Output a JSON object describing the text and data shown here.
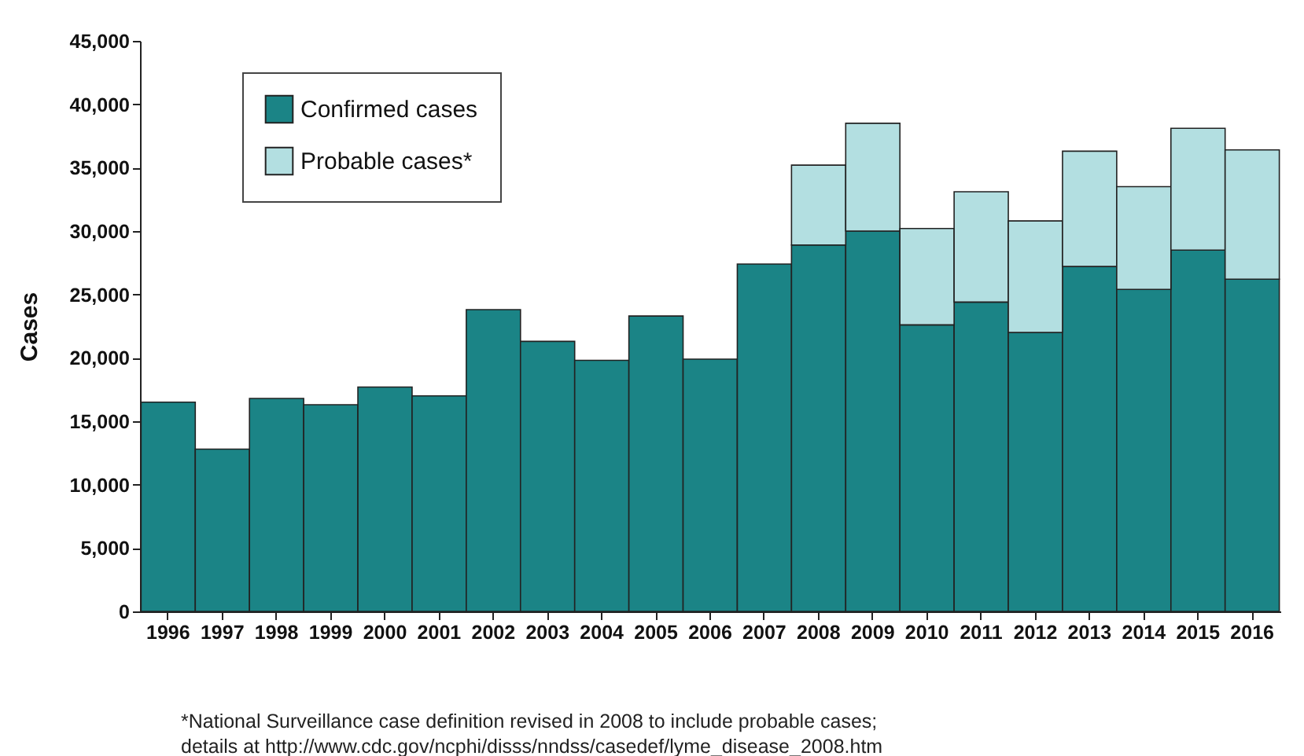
{
  "chart_data": {
    "type": "bar",
    "stacked": true,
    "ylabel": "Cases",
    "categories": [
      "1996",
      "1997",
      "1998",
      "1999",
      "2000",
      "2001",
      "2002",
      "2003",
      "2004",
      "2005",
      "2006",
      "2007",
      "2008",
      "2009",
      "2010",
      "2011",
      "2012",
      "2013",
      "2014",
      "2015",
      "2016"
    ],
    "series": [
      {
        "name": "Confirmed cases",
        "color": "#1b8486",
        "values": [
          16500,
          12800,
          16800,
          16300,
          17700,
          17000,
          23800,
          21300,
          19800,
          23300,
          19900,
          27400,
          28900,
          30000,
          22600,
          24400,
          22000,
          27200,
          25400,
          28500,
          26200
        ]
      },
      {
        "name": "Probable cases*",
        "color": "#b3dfe1",
        "values": [
          null,
          null,
          null,
          null,
          null,
          null,
          null,
          null,
          null,
          null,
          null,
          null,
          6300,
          8500,
          7600,
          8700,
          8800,
          9100,
          8100,
          9600,
          10200
        ]
      }
    ],
    "ylim": [
      0,
      45000
    ],
    "yticks": [
      0,
      {
        "value": 5000,
        "label": "5,000"
      },
      {
        "value": 10000,
        "label": "10,000"
      },
      {
        "value": 15000,
        "label": "15,000"
      },
      {
        "value": 20000,
        "label": "20,000"
      },
      {
        "value": 25000,
        "label": "25,000"
      },
      {
        "value": 30000,
        "label": "30,000"
      },
      {
        "value": 35000,
        "label": "35,000"
      },
      {
        "value": 40000,
        "label": "40,000"
      },
      {
        "value": 45000,
        "label": "45,000"
      }
    ],
    "grid": false,
    "legend": "top left",
    "annotations": [
      "*National Surveillance case definition revised in 2008 to include probable cases;",
      "details at http://www.cdc.gov/ncphi/disss/nndss/casedef/lyme_disease_2008.htm"
    ]
  }
}
